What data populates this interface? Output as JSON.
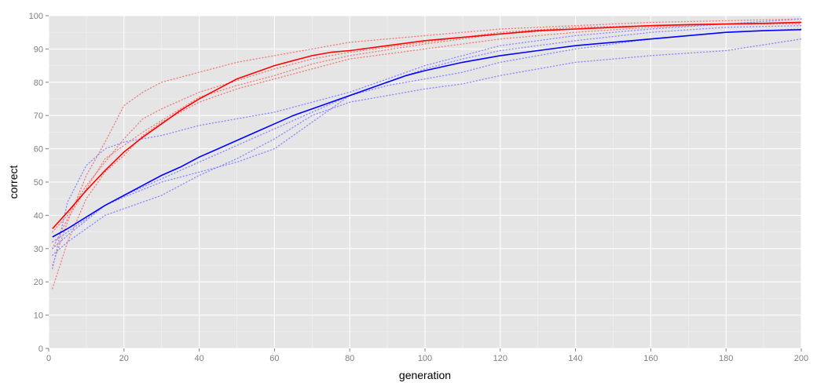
{
  "chart_data": {
    "type": "line",
    "title": "",
    "xlabel": "generation",
    "ylabel": "correct",
    "xlim": [
      0,
      200
    ],
    "ylim": [
      0,
      100
    ],
    "x_ticks": [
      0,
      20,
      40,
      60,
      80,
      100,
      120,
      140,
      160,
      180,
      200
    ],
    "y_ticks": [
      0,
      10,
      20,
      30,
      40,
      50,
      60,
      70,
      80,
      90,
      100
    ],
    "grid": true,
    "legend": "none",
    "colors": {
      "panel": "#e5e5e5",
      "grid_major": "#ffffff",
      "grid_minor": "#f2f2f2",
      "red": "#ff0000",
      "blue": "#0000ff",
      "red_runs": "#f08080",
      "blue_runs": "#8c8cff"
    },
    "series": [
      {
        "color": "red",
        "style": "solid",
        "role": "mean",
        "x": [
          1,
          5,
          10,
          15,
          20,
          25,
          30,
          35,
          40,
          45,
          50,
          55,
          60,
          65,
          70,
          75,
          80,
          90,
          100,
          110,
          120,
          130,
          140,
          150,
          160,
          170,
          180,
          190,
          200
        ],
        "y": [
          36,
          41,
          47.5,
          53.5,
          59,
          63.5,
          67.5,
          71.5,
          75,
          78,
          81,
          83,
          85,
          86.5,
          88,
          89,
          89.5,
          91,
          92.5,
          93.5,
          94.5,
          95.5,
          96,
          96.5,
          97,
          97.3,
          97.5,
          97.7,
          98
        ]
      },
      {
        "color": "blue",
        "style": "solid",
        "role": "mean",
        "x": [
          1,
          5,
          10,
          15,
          20,
          25,
          30,
          35,
          40,
          45,
          50,
          55,
          60,
          65,
          70,
          75,
          80,
          85,
          90,
          95,
          100,
          110,
          120,
          130,
          140,
          150,
          160,
          170,
          180,
          190,
          200
        ],
        "y": [
          33.5,
          36,
          39.5,
          43,
          46,
          49,
          52,
          54.5,
          57.5,
          60,
          62.5,
          65,
          67.5,
          70,
          72,
          74,
          76,
          78,
          80,
          82,
          83.5,
          86,
          88,
          89.5,
          91,
          92,
          93,
          94,
          95,
          95.5,
          95.8
        ]
      },
      {
        "color": "red",
        "style": "dotted",
        "role": "run",
        "x": [
          1,
          5,
          10,
          15,
          20,
          25,
          30,
          40,
          50,
          60,
          70,
          80,
          100,
          120,
          140,
          160,
          180,
          200
        ],
        "y": [
          25,
          38,
          52,
          62,
          73,
          77,
          80,
          83,
          86,
          88,
          90,
          92,
          94,
          96,
          97,
          98,
          98.5,
          99
        ]
      },
      {
        "color": "red",
        "style": "dotted",
        "role": "run",
        "x": [
          1,
          5,
          10,
          15,
          20,
          25,
          30,
          40,
          50,
          60,
          70,
          80,
          100,
          120,
          140,
          160,
          180,
          200
        ],
        "y": [
          18,
          32,
          45,
          53,
          58,
          64,
          68,
          74,
          78,
          81,
          84,
          87,
          90,
          93,
          95,
          96.5,
          97.5,
          98
        ]
      },
      {
        "color": "red",
        "style": "dotted",
        "role": "run",
        "x": [
          1,
          5,
          10,
          15,
          20,
          25,
          30,
          40,
          50,
          60,
          70,
          80,
          100,
          120,
          140,
          160,
          180,
          200
        ],
        "y": [
          30,
          39,
          48,
          57,
          61,
          65,
          68.5,
          75.5,
          79,
          82,
          85.5,
          88,
          91.5,
          94.5,
          96,
          97,
          97.5,
          98
        ]
      },
      {
        "color": "red",
        "style": "dotted",
        "role": "run",
        "x": [
          1,
          5,
          10,
          15,
          20,
          25,
          30,
          40,
          50,
          60,
          70,
          80,
          100,
          120,
          140,
          160,
          180,
          200
        ],
        "y": [
          35,
          40,
          49,
          56,
          63,
          69,
          72,
          77,
          80.5,
          84,
          87,
          89,
          92,
          95,
          96.5,
          97,
          97.5,
          97.5
        ]
      },
      {
        "color": "blue",
        "style": "dotted",
        "role": "run",
        "x": [
          1,
          5,
          10,
          15,
          20,
          30,
          40,
          50,
          60,
          70,
          80,
          90,
          100,
          110,
          120,
          140,
          160,
          180,
          200
        ],
        "y": [
          24,
          44,
          55,
          60,
          62,
          64,
          67,
          69,
          71,
          74,
          77,
          81,
          85,
          88,
          91,
          94,
          96,
          97.5,
          99
        ]
      },
      {
        "color": "blue",
        "style": "dotted",
        "role": "run",
        "x": [
          1,
          5,
          10,
          15,
          20,
          30,
          40,
          50,
          60,
          70,
          80,
          90,
          100,
          110,
          120,
          140,
          160,
          180,
          200
        ],
        "y": [
          28,
          32,
          36,
          40,
          42,
          46,
          52,
          57,
          63,
          70,
          74,
          76,
          78,
          79.5,
          82,
          86,
          88,
          89.5,
          93
        ]
      },
      {
        "color": "blue",
        "style": "dotted",
        "role": "run",
        "x": [
          1,
          5,
          10,
          15,
          20,
          30,
          40,
          50,
          60,
          70,
          80,
          90,
          100,
          110,
          120,
          140,
          160,
          180,
          200
        ],
        "y": [
          32,
          35,
          39,
          43,
          45.5,
          50,
          53,
          56,
          60,
          68,
          76,
          79,
          81,
          83,
          86,
          90,
          93,
          95,
          96
        ]
      },
      {
        "color": "blue",
        "style": "dotted",
        "role": "run",
        "x": [
          1,
          5,
          10,
          15,
          20,
          30,
          40,
          50,
          60,
          70,
          80,
          90,
          100,
          110,
          120,
          140,
          160,
          180,
          200
        ],
        "y": [
          30,
          34,
          38.5,
          43,
          46,
          51,
          56,
          61,
          66,
          71,
          76,
          80,
          84,
          87,
          89.5,
          92.5,
          95,
          96.5,
          97
        ]
      }
    ]
  }
}
